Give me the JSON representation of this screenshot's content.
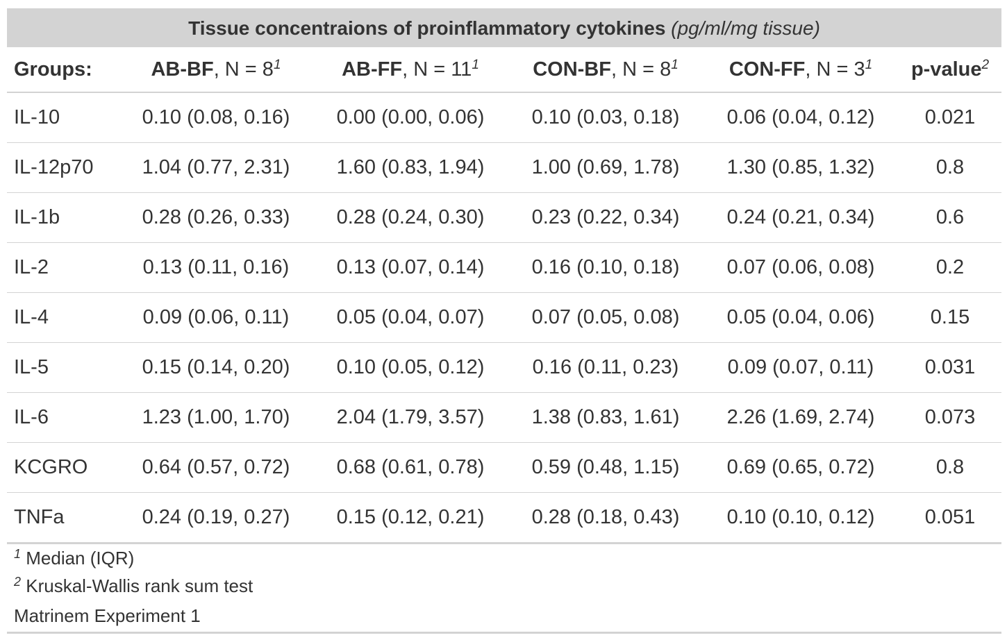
{
  "table": {
    "title": "Tissue concentraions of proinflammatory cytokines",
    "title_units": "(pg/ml/mg tissue)",
    "header": {
      "label": "Groups:",
      "columns": [
        {
          "group": "AB-BF",
          "n": ", N = 8",
          "sup": "1"
        },
        {
          "group": "AB-FF",
          "n": ", N = 11",
          "sup": "1"
        },
        {
          "group": "CON-BF",
          "n": ", N = 8",
          "sup": "1"
        },
        {
          "group": "CON-FF",
          "n": ", N = 3",
          "sup": "1"
        }
      ],
      "pvalue": {
        "label": "p-value",
        "sup": "2"
      }
    },
    "rows": [
      {
        "label": "IL-10",
        "values": [
          "0.10 (0.08, 0.16)",
          "0.00 (0.00, 0.06)",
          "0.10 (0.03, 0.18)",
          "0.06 (0.04, 0.12)"
        ],
        "p": "0.021"
      },
      {
        "label": "IL-12p70",
        "values": [
          "1.04 (0.77, 2.31)",
          "1.60 (0.83, 1.94)",
          "1.00 (0.69, 1.78)",
          "1.30 (0.85, 1.32)"
        ],
        "p": "0.8"
      },
      {
        "label": "IL-1b",
        "values": [
          "0.28 (0.26, 0.33)",
          "0.28 (0.24, 0.30)",
          "0.23 (0.22, 0.34)",
          "0.24 (0.21, 0.34)"
        ],
        "p": "0.6"
      },
      {
        "label": "IL-2",
        "values": [
          "0.13 (0.11, 0.16)",
          "0.13 (0.07, 0.14)",
          "0.16 (0.10, 0.18)",
          "0.07 (0.06, 0.08)"
        ],
        "p": "0.2"
      },
      {
        "label": "IL-4",
        "values": [
          "0.09 (0.06, 0.11)",
          "0.05 (0.04, 0.07)",
          "0.07 (0.05, 0.08)",
          "0.05 (0.04, 0.06)"
        ],
        "p": "0.15"
      },
      {
        "label": "IL-5",
        "values": [
          "0.15 (0.14, 0.20)",
          "0.10 (0.05, 0.12)",
          "0.16 (0.11, 0.23)",
          "0.09 (0.07, 0.11)"
        ],
        "p": "0.031"
      },
      {
        "label": "IL-6",
        "values": [
          "1.23 (1.00, 1.70)",
          "2.04 (1.79, 3.57)",
          "1.38 (0.83, 1.61)",
          "2.26 (1.69, 2.74)"
        ],
        "p": "0.073"
      },
      {
        "label": "KCGRO",
        "values": [
          "0.64 (0.57, 0.72)",
          "0.68 (0.61, 0.78)",
          "0.59 (0.48, 1.15)",
          "0.69 (0.65, 0.72)"
        ],
        "p": "0.8"
      },
      {
        "label": "TNFa",
        "values": [
          "0.24 (0.19, 0.27)",
          "0.15 (0.12, 0.21)",
          "0.28 (0.18, 0.43)",
          "0.10 (0.10, 0.12)"
        ],
        "p": "0.051"
      }
    ],
    "footnotes": [
      {
        "sup": "1",
        "text": " Median (IQR)"
      },
      {
        "sup": "2",
        "text": " Kruskal-Wallis rank sum test"
      }
    ],
    "source_note": "Matrinem Experiment 1"
  }
}
